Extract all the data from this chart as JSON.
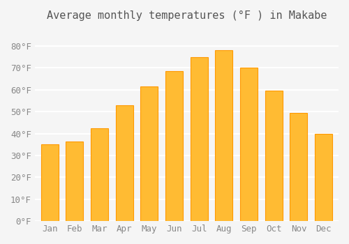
{
  "title": "Average monthly temperatures (°F ) in Makabe",
  "months": [
    "Jan",
    "Feb",
    "Mar",
    "Apr",
    "May",
    "Jun",
    "Jul",
    "Aug",
    "Sep",
    "Oct",
    "Nov",
    "Dec"
  ],
  "values": [
    35,
    36.5,
    42.5,
    53,
    61.5,
    68.5,
    75,
    78,
    70,
    59.5,
    49.5,
    40
  ],
  "bar_color": "#FFBB33",
  "bar_edge_color": "#FF9900",
  "background_color": "#F5F5F5",
  "grid_color": "#FFFFFF",
  "ylim": [
    0,
    88
  ],
  "yticks": [
    0,
    10,
    20,
    30,
    40,
    50,
    60,
    70,
    80
  ],
  "title_fontsize": 11,
  "tick_fontsize": 9,
  "font_family": "monospace"
}
